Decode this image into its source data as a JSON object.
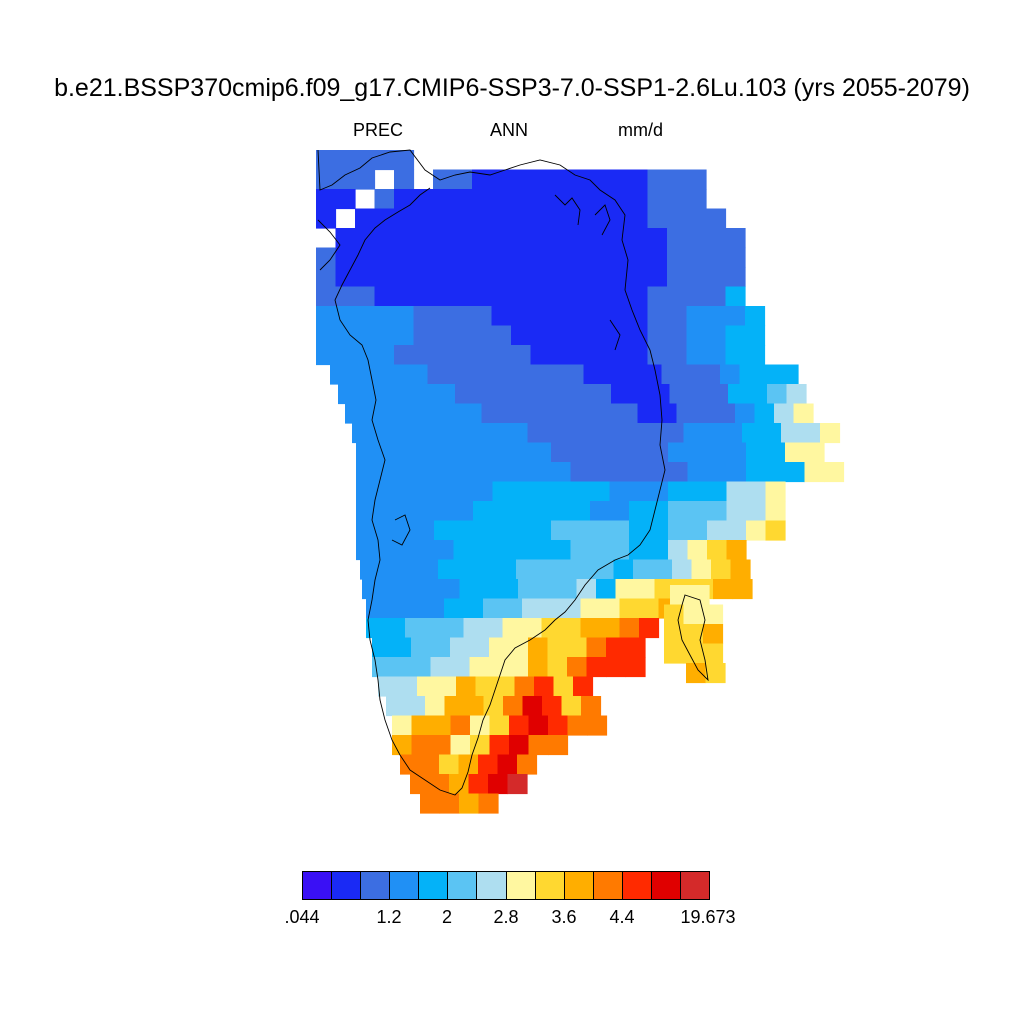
{
  "title": "b.e21.BSSP370cmip6.f09_g17.CMIP6-SSP3-7.0-SSP1-2.6Lu.103 (yrs 2055-2079)",
  "subtitle": {
    "variable": "PREC",
    "season": "ANN",
    "units": "mm/d"
  },
  "colorbar": {
    "colors": [
      "#3a10f5",
      "#1a2af5",
      "#3c6ee2",
      "#2090f5",
      "#04b2f8",
      "#5bc4f3",
      "#aedef0",
      "#fff7a0",
      "#ffd830",
      "#ffae00",
      "#ff7a00",
      "#ff2a00",
      "#e00000",
      "#d42a2a"
    ],
    "labels": [
      ".044",
      "1.2",
      "2",
      "2.8",
      "3.6",
      "4.4",
      "19.673"
    ]
  },
  "map": {
    "region": "Greenland",
    "rows": [
      [
        {
          "c": 2,
          "n": 5
        }
      ],
      [
        {
          "c": 2,
          "n": 3
        },
        {
          "c": -1,
          "n": 1
        },
        {
          "c": 2,
          "n": 1
        },
        {
          "c": -1,
          "n": 1
        },
        {
          "c": 2,
          "n": 2
        },
        {
          "c": 1,
          "n": 9
        },
        {
          "c": 2,
          "n": 3
        }
      ],
      [
        {
          "c": 1,
          "n": 2
        },
        {
          "c": -1,
          "n": 1
        },
        {
          "c": 2,
          "n": 1
        },
        {
          "c": 1,
          "n": 13
        },
        {
          "c": 2,
          "n": 3
        }
      ],
      [
        {
          "c": 1,
          "n": 1
        },
        {
          "c": -1,
          "n": 1
        },
        {
          "c": 1,
          "n": 15
        },
        {
          "c": 2,
          "n": 4
        }
      ],
      [
        {
          "c": -1,
          "n": 1
        },
        {
          "c": 1,
          "n": 17
        },
        {
          "c": 2,
          "n": 4
        }
      ],
      [
        {
          "c": 2,
          "n": 1
        },
        {
          "c": 1,
          "n": 17
        },
        {
          "c": 2,
          "n": 4
        }
      ],
      [
        {
          "c": 2,
          "n": 1
        },
        {
          "c": 1,
          "n": 17
        },
        {
          "c": 2,
          "n": 4
        }
      ],
      [
        {
          "c": 2,
          "n": 3
        },
        {
          "c": 1,
          "n": 14
        },
        {
          "c": 2,
          "n": 4
        },
        {
          "c": 4,
          "n": 1
        }
      ],
      [
        {
          "c": 3,
          "n": 5
        },
        {
          "c": 2,
          "n": 4
        },
        {
          "c": 1,
          "n": 8
        },
        {
          "c": 2,
          "n": 2
        },
        {
          "c": 3,
          "n": 3
        },
        {
          "c": 4,
          "n": 1
        }
      ],
      [
        {
          "c": 3,
          "n": 5
        },
        {
          "c": 2,
          "n": 5
        },
        {
          "c": 1,
          "n": 7
        },
        {
          "c": 2,
          "n": 2
        },
        {
          "c": 3,
          "n": 2
        },
        {
          "c": 4,
          "n": 2
        }
      ],
      [
        {
          "c": 3,
          "n": 4
        },
        {
          "c": 2,
          "n": 7
        },
        {
          "c": 1,
          "n": 6
        },
        {
          "c": 2,
          "n": 2
        },
        {
          "c": 3,
          "n": 2
        },
        {
          "c": 4,
          "n": 2
        }
      ],
      [
        {
          "c": 3,
          "n": 5
        },
        {
          "c": 2,
          "n": 8
        },
        {
          "c": 1,
          "n": 4
        },
        {
          "c": 2,
          "n": 3
        },
        {
          "c": 3,
          "n": 1
        },
        {
          "c": 4,
          "n": 3
        }
      ],
      [
        {
          "c": 3,
          "n": 6
        },
        {
          "c": 2,
          "n": 8
        },
        {
          "c": 1,
          "n": 3
        },
        {
          "c": 2,
          "n": 3
        },
        {
          "c": 4,
          "n": 2
        },
        {
          "c": 5,
          "n": 1
        },
        {
          "c": 6,
          "n": 1
        }
      ],
      [
        {
          "c": 3,
          "n": 7
        },
        {
          "c": 2,
          "n": 8
        },
        {
          "c": 1,
          "n": 2
        },
        {
          "c": 2,
          "n": 3
        },
        {
          "c": 3,
          "n": 1
        },
        {
          "c": 4,
          "n": 1
        },
        {
          "c": 6,
          "n": 1
        },
        {
          "c": 7,
          "n": 1
        }
      ],
      [
        {
          "c": 3,
          "n": 9
        },
        {
          "c": 2,
          "n": 8
        },
        {
          "c": 3,
          "n": 3
        },
        {
          "c": 4,
          "n": 2
        },
        {
          "c": 6,
          "n": 2
        },
        {
          "c": 7,
          "n": 1
        }
      ],
      [
        {
          "c": 3,
          "n": 10
        },
        {
          "c": 2,
          "n": 6
        },
        {
          "c": 3,
          "n": 4
        },
        {
          "c": 4,
          "n": 2
        },
        {
          "c": 7,
          "n": 2
        }
      ],
      [
        {
          "c": 3,
          "n": 11
        },
        {
          "c": 2,
          "n": 6
        },
        {
          "c": 3,
          "n": 3
        },
        {
          "c": 4,
          "n": 3
        },
        {
          "c": 7,
          "n": 2
        }
      ],
      [
        {
          "c": 3,
          "n": 7
        },
        {
          "c": 4,
          "n": 6
        },
        {
          "c": 3,
          "n": 3
        },
        {
          "c": 4,
          "n": 3
        },
        {
          "c": 6,
          "n": 2
        },
        {
          "c": 7,
          "n": 1
        }
      ],
      [
        {
          "c": 3,
          "n": 6
        },
        {
          "c": 4,
          "n": 6
        },
        {
          "c": 3,
          "n": 2
        },
        {
          "c": 4,
          "n": 2
        },
        {
          "c": 5,
          "n": 3
        },
        {
          "c": 6,
          "n": 2
        },
        {
          "c": 7,
          "n": 1
        }
      ],
      [
        {
          "c": 3,
          "n": 4
        },
        {
          "c": 4,
          "n": 6
        },
        {
          "c": 5,
          "n": 4
        },
        {
          "c": 4,
          "n": 2
        },
        {
          "c": 5,
          "n": 2
        },
        {
          "c": 6,
          "n": 2
        },
        {
          "c": 7,
          "n": 1
        },
        {
          "c": 8,
          "n": 1
        }
      ],
      [
        {
          "c": 3,
          "n": 5
        },
        {
          "c": 4,
          "n": 6
        },
        {
          "c": 5,
          "n": 3
        },
        {
          "c": 4,
          "n": 2
        },
        {
          "c": 6,
          "n": 1
        },
        {
          "c": 7,
          "n": 1
        },
        {
          "c": 8,
          "n": 1
        },
        {
          "c": 9,
          "n": 1
        }
      ],
      [
        {
          "c": 3,
          "n": 4
        },
        {
          "c": 4,
          "n": 4
        },
        {
          "c": 5,
          "n": 5
        },
        {
          "c": 4,
          "n": 1
        },
        {
          "c": 5,
          "n": 2
        },
        {
          "c": 6,
          "n": 1
        },
        {
          "c": 7,
          "n": 1
        },
        {
          "c": 8,
          "n": 1
        },
        {
          "c": 9,
          "n": 1
        }
      ],
      [
        {
          "c": 3,
          "n": 5
        },
        {
          "c": 4,
          "n": 3
        },
        {
          "c": 5,
          "n": 3
        },
        {
          "c": 6,
          "n": 1
        },
        {
          "c": 4,
          "n": 1
        },
        {
          "c": 7,
          "n": 2
        },
        {
          "c": 8,
          "n": 3
        },
        {
          "c": 9,
          "n": 2
        }
      ],
      [
        {
          "c": 3,
          "n": 4
        },
        {
          "c": 4,
          "n": 2
        },
        {
          "c": 5,
          "n": 2
        },
        {
          "c": 6,
          "n": 3
        },
        {
          "c": 7,
          "n": 2
        },
        {
          "c": 8,
          "n": 2
        },
        {
          "c": 9,
          "n": 2
        }
      ],
      [
        {
          "c": 4,
          "n": 2
        },
        {
          "c": 5,
          "n": 3
        },
        {
          "c": 6,
          "n": 2
        },
        {
          "c": 7,
          "n": 2
        },
        {
          "c": 8,
          "n": 2
        },
        {
          "c": 9,
          "n": 2
        },
        {
          "c": 10,
          "n": 1
        },
        {
          "c": 11,
          "n": 1
        }
      ],
      [
        {
          "c": 4,
          "n": 2
        },
        {
          "c": 5,
          "n": 2
        },
        {
          "c": 6,
          "n": 2
        },
        {
          "c": 7,
          "n": 2
        },
        {
          "c": 9,
          "n": 1
        },
        {
          "c": 8,
          "n": 2
        },
        {
          "c": 10,
          "n": 1
        },
        {
          "c": 11,
          "n": 2
        }
      ],
      [
        {
          "c": 5,
          "n": 3
        },
        {
          "c": 6,
          "n": 2
        },
        {
          "c": 7,
          "n": 3
        },
        {
          "c": 9,
          "n": 1
        },
        {
          "c": 8,
          "n": 1
        },
        {
          "c": 10,
          "n": 1
        },
        {
          "c": 11,
          "n": 3
        }
      ],
      [
        {
          "c": 6,
          "n": 2
        },
        {
          "c": 7,
          "n": 2
        },
        {
          "c": 9,
          "n": 1
        },
        {
          "c": 8,
          "n": 2
        },
        {
          "c": 10,
          "n": 1
        },
        {
          "c": 11,
          "n": 1
        },
        {
          "c": 8,
          "n": 1
        },
        {
          "c": 11,
          "n": 1
        }
      ],
      [
        {
          "c": 6,
          "n": 2
        },
        {
          "c": 7,
          "n": 1
        },
        {
          "c": 9,
          "n": 2
        },
        {
          "c": 8,
          "n": 1
        },
        {
          "c": 10,
          "n": 1
        },
        {
          "c": 12,
          "n": 1
        },
        {
          "c": 11,
          "n": 1
        },
        {
          "c": 8,
          "n": 1
        },
        {
          "c": 10,
          "n": 1
        }
      ],
      [
        {
          "c": 7,
          "n": 1
        },
        {
          "c": 9,
          "n": 2
        },
        {
          "c": 10,
          "n": 1
        },
        {
          "c": 7,
          "n": 1
        },
        {
          "c": 8,
          "n": 1
        },
        {
          "c": 11,
          "n": 1
        },
        {
          "c": 12,
          "n": 1
        },
        {
          "c": 11,
          "n": 1
        },
        {
          "c": 10,
          "n": 2
        }
      ],
      [
        {
          "c": 9,
          "n": 1
        },
        {
          "c": 10,
          "n": 2
        },
        {
          "c": 7,
          "n": 1
        },
        {
          "c": 8,
          "n": 1
        },
        {
          "c": 11,
          "n": 1
        },
        {
          "c": 12,
          "n": 1
        },
        {
          "c": 10,
          "n": 2
        }
      ],
      [
        {
          "c": 10,
          "n": 2
        },
        {
          "c": 8,
          "n": 1
        },
        {
          "c": 9,
          "n": 1
        },
        {
          "c": 11,
          "n": 1
        },
        {
          "c": 12,
          "n": 1
        },
        {
          "c": 10,
          "n": 1
        }
      ],
      [
        {
          "c": 10,
          "n": 2
        },
        {
          "c": 9,
          "n": 1
        },
        {
          "c": 11,
          "n": 1
        },
        {
          "c": 12,
          "n": 1
        },
        {
          "c": 13,
          "n": 1
        }
      ],
      [
        {
          "c": 10,
          "n": 2
        },
        {
          "c": 9,
          "n": 1
        },
        {
          "c": 10,
          "n": 1
        }
      ]
    ],
    "rows_extra": [
      [
        {
          "c": 7,
          "n": 2
        }
      ],
      [
        {
          "c": 8,
          "n": 1
        },
        {
          "c": 7,
          "n": 2
        }
      ],
      [
        {
          "c": 8,
          "n": 2
        },
        {
          "c": 9,
          "n": 1
        }
      ],
      [
        {
          "c": 8,
          "n": 3
        }
      ],
      [
        {
          "c": 9,
          "n": 1
        },
        {
          "c": 8,
          "n": 1
        }
      ]
    ]
  }
}
